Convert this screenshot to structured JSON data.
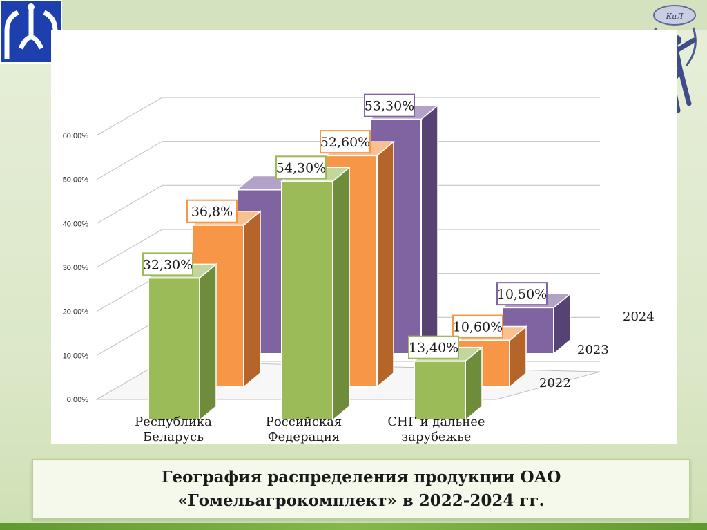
{
  "slide": {
    "caption": "География распределения продукции ОАО «Гомельагрокомплект» в 2022-2024 гг.",
    "emblem_text": "КиЛ",
    "logo_icon": "university-logo-icon",
    "emblem_icon": "mercury-statue-icon"
  },
  "chart_data": {
    "type": "bar",
    "subtype": "3d-clustered-depth",
    "title": "",
    "xlabel": "",
    "ylabel": "",
    "categories": [
      "Республика Беларусь",
      "Российская Федерация",
      "СНГ и дальнее зарубежье"
    ],
    "y_ticks": [
      "0,00%",
      "10,00%",
      "20,00%",
      "30,00%",
      "40,00%",
      "50,00%",
      "60,00%"
    ],
    "ylim": [
      0,
      60
    ],
    "grid": true,
    "series": [
      {
        "name": "2022",
        "values": [
          32.3,
          54.3,
          13.4
        ],
        "labels": [
          "32,30%",
          "54,30%",
          "13,40%"
        ],
        "color": "#9bbb59"
      },
      {
        "name": "2023",
        "values": [
          36.8,
          52.6,
          10.6
        ],
        "labels": [
          "36,8%",
          "52,60%",
          "10,60%"
        ],
        "color": "#f79646"
      },
      {
        "name": "2024",
        "values": [
          37.3,
          53.3,
          10.5
        ],
        "labels": [
          "",
          "53,30%",
          "10,50%"
        ],
        "color": "#8064a2"
      }
    ]
  }
}
